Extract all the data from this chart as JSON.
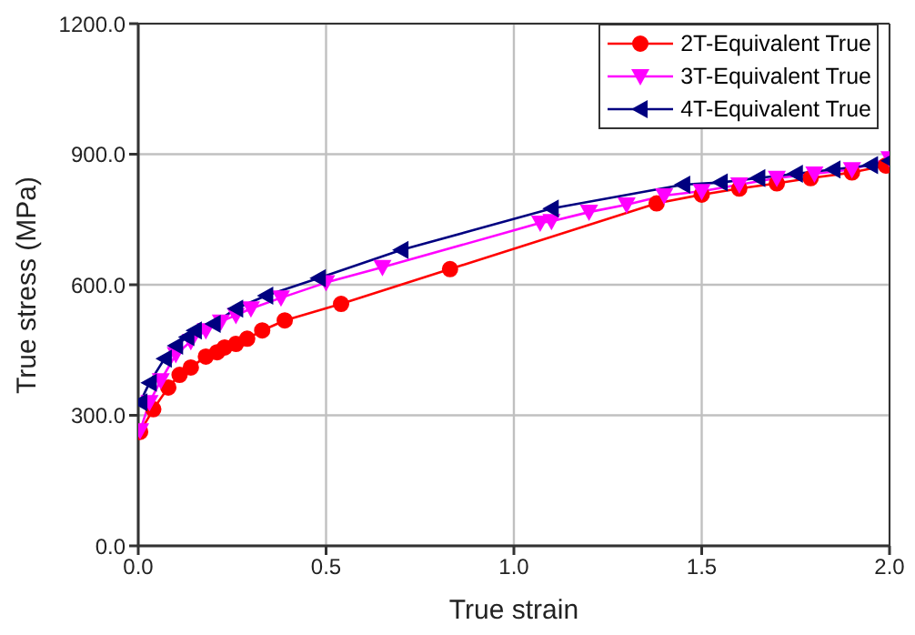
{
  "chart_data": {
    "type": "line",
    "xlabel": "True strain",
    "ylabel": "True stress (MPa)",
    "xlim": [
      0,
      2
    ],
    "xticks": [
      {
        "value": 0,
        "label": "0.0"
      },
      {
        "value": 0.5,
        "label": "0.5"
      },
      {
        "value": 1,
        "label": "1.0"
      },
      {
        "value": 1.5,
        "label": "1.5"
      },
      {
        "value": 2,
        "label": "2.0"
      }
    ],
    "ylim": [
      0,
      1200
    ],
    "yticks": [
      {
        "value": 0,
        "label": "0.0"
      },
      {
        "value": 300,
        "label": "300.0"
      },
      {
        "value": 600,
        "label": "600.0"
      },
      {
        "value": 900,
        "label": "900.0"
      },
      {
        "value": 1200,
        "label": "1200.0"
      }
    ],
    "grid": true,
    "legend": "top right",
    "series": [
      {
        "name": "2T-Equivalent True",
        "color": "#ff0000",
        "marker": "circle",
        "x": [
          0.005,
          0.04,
          0.08,
          0.11,
          0.14,
          0.18,
          0.21,
          0.23,
          0.26,
          0.29,
          0.33,
          0.39,
          0.54,
          0.83,
          1.38,
          1.5,
          1.6,
          1.7,
          1.79,
          1.9,
          1.99
        ],
        "values": [
          262,
          314,
          364,
          393,
          410,
          435,
          445,
          456,
          464,
          476,
          495,
          518,
          556,
          636,
          787,
          807,
          821,
          833,
          845,
          858,
          874
        ]
      },
      {
        "name": "3T-Equivalent True",
        "color": "#ff00ff",
        "marker": "triangle-down",
        "x": [
          0.005,
          0.03,
          0.06,
          0.1,
          0.14,
          0.18,
          0.22,
          0.26,
          0.3,
          0.38,
          0.5,
          0.65,
          1.07,
          1.1,
          1.2,
          1.3,
          1.4,
          1.5,
          1.6,
          1.7,
          1.8,
          1.9,
          2.0
        ],
        "values": [
          265,
          330,
          380,
          440,
          470,
          495,
          515,
          530,
          545,
          570,
          605,
          640,
          742,
          746,
          767,
          784,
          805,
          815,
          830,
          845,
          855,
          865,
          890
        ]
      },
      {
        "name": "4T-Equivalent True",
        "color": "#000080",
        "marker": "triangle-left",
        "x": [
          0.005,
          0.03,
          0.07,
          0.1,
          0.13,
          0.15,
          0.2,
          0.26,
          0.34,
          0.48,
          0.7,
          1.1,
          1.45,
          1.55,
          1.65,
          1.75,
          1.85,
          1.95,
          2.0
        ],
        "values": [
          330,
          375,
          430,
          460,
          480,
          495,
          510,
          545,
          575,
          615,
          680,
          775,
          830,
          835,
          845,
          855,
          865,
          875,
          885
        ]
      }
    ]
  }
}
